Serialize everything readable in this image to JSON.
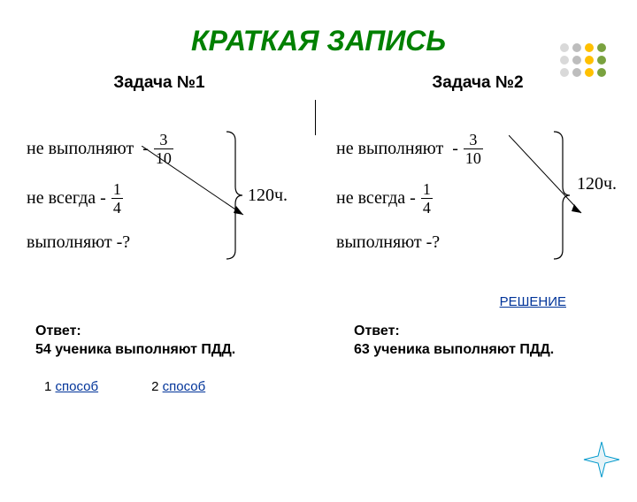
{
  "title": {
    "text": "КРАТКАЯ ЗАПИСЬ",
    "color": "#008000",
    "fontsize": 32
  },
  "subheads": {
    "left": "Задача №1",
    "right": "Задача №2",
    "fontsize": 19,
    "color": "#000000"
  },
  "body_font": "Times New Roman",
  "rows": {
    "r1": {
      "label": "не  выполняют",
      "num": "3",
      "den": "10"
    },
    "r2": {
      "label": "не всегда  -",
      "num": "1",
      "den": "4"
    },
    "r3": {
      "label": "выполняют   -?"
    }
  },
  "total": {
    "value": "120ч."
  },
  "brace": {
    "stroke": "#000000",
    "width": 1
  },
  "arrow": {
    "stroke": "#000000",
    "width": 1
  },
  "link": {
    "text": "РЕШЕНИЕ",
    "color": "#003399"
  },
  "answers": {
    "left": {
      "line1": "Ответ:",
      "line2": "54 ученика выполняют   ПДД."
    },
    "right": {
      "line1": "Ответ:",
      "line2": "63 ученика выполняют   ПДД."
    },
    "fontsize": 16
  },
  "methods": {
    "m1": {
      "prefix": "1 ",
      "link": "способ"
    },
    "m2": {
      "prefix": "2 ",
      "link": "способ"
    }
  },
  "dots": {
    "cols": [
      {
        "color": "#d9d9d9"
      },
      {
        "color": "#bdbdbd"
      },
      {
        "color": "#ffc000"
      },
      {
        "color": "#7aa23f"
      }
    ],
    "rows": 3,
    "r": 5,
    "gap": 14
  },
  "star": {
    "color": "#0099cc",
    "size": 44
  }
}
